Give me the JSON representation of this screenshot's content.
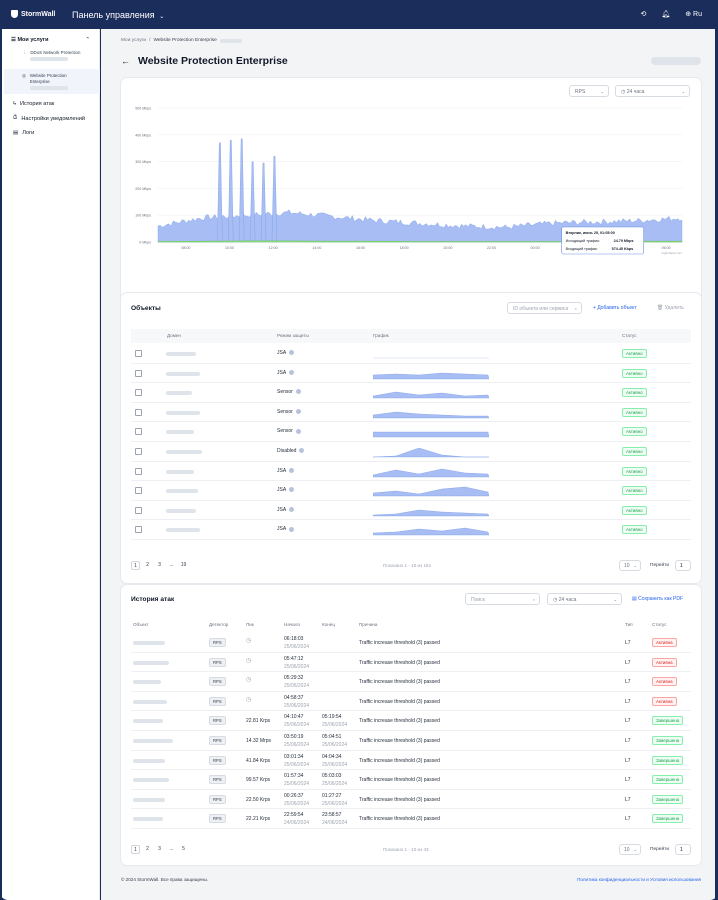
{
  "topbar": {
    "brand": "StormWall",
    "panel_title": "Панель управления",
    "lang": "Ru"
  },
  "sidebar": {
    "my_services": "Мои услуги",
    "services": [
      {
        "label": "DDoS Network Protection"
      },
      {
        "label": "Website Protection Enterprise"
      }
    ],
    "sections": [
      "История атак",
      "Настройки уведомлений",
      "Логи"
    ]
  },
  "breadcrumb": {
    "root": "Мои услуги",
    "sep": "/",
    "current": "Website Protection Enterprise"
  },
  "page": {
    "title": "Website Protection Enterprise"
  },
  "traffic_card": {
    "metric_select": "RPS",
    "period_select": "24 часа",
    "watermark": "highcharts.com"
  },
  "chart_data": {
    "type": "area",
    "x": [
      "06:00",
      "08:00",
      "10:00",
      "12:00",
      "14:00",
      "16:00",
      "18:00",
      "20:00",
      "22:00",
      "00:00",
      "02:00",
      "04:00",
      "06:00"
    ],
    "y_ticks": [
      "0 Mbps",
      "100 Mbps",
      "200 Mbps",
      "300 Mbps",
      "400 Mbps",
      "500 Mbps"
    ],
    "ylim": [
      0,
      500
    ],
    "series": [
      {
        "name": "Исходящий трафик",
        "color": "#a7bdf3",
        "values": [
          60,
          90,
          100,
          110,
          95,
          80,
          70,
          60,
          55,
          70,
          75,
          80,
          90
        ]
      },
      {
        "name": "Входящий трафик",
        "color": "#9be38a",
        "values": [
          2,
          3,
          4,
          4,
          3,
          3,
          2,
          2,
          2,
          2,
          2,
          3,
          3
        ]
      }
    ],
    "spikes": [
      {
        "x": "08:50",
        "y": 370
      },
      {
        "x": "09:20",
        "y": 380
      },
      {
        "x": "09:50",
        "y": 385
      },
      {
        "x": "10:20",
        "y": 300
      },
      {
        "x": "10:50",
        "y": 295
      },
      {
        "x": "11:20",
        "y": 320
      }
    ],
    "tooltip": {
      "title": "Вторник, июнь 25, 01:05:00",
      "line1_label": "Исходящий трафик:",
      "line1_value": "24.79 Mbps",
      "line2_label": "Входящий трафик:",
      "line2_value": "574.45 Kbps"
    },
    "legend": "bottom-center",
    "grid": true
  },
  "objects": {
    "title": "Объекты",
    "search_placeholder": "ID объекта или сервиса",
    "add_label": "Добавить объект",
    "delete_label": "Удалить",
    "columns": [
      "Домен",
      "Режим защиты",
      "График",
      "Статус"
    ],
    "rows": [
      {
        "mode": "JSA",
        "status": "Активно"
      },
      {
        "mode": "JSA",
        "status": "Активно"
      },
      {
        "mode": "Sensor",
        "status": "Активно"
      },
      {
        "mode": "Sensor",
        "status": "Активно"
      },
      {
        "mode": "Sensor",
        "status": "Активно"
      },
      {
        "mode": "Disabled",
        "status": "Активно"
      },
      {
        "mode": "JSA",
        "status": "Активно"
      },
      {
        "mode": "JSA",
        "status": "Активно"
      },
      {
        "mode": "JSA",
        "status": "Активно"
      },
      {
        "mode": "JSA",
        "status": "Активно"
      }
    ],
    "pages": [
      "1",
      "2",
      "3",
      "...",
      "19"
    ],
    "shown": "Показано 1 - 10 из 181",
    "page_size": "10",
    "goto_label": "Перейти",
    "goto_value": "1"
  },
  "attacks": {
    "title": "История атак",
    "search_placeholder": "Поиск",
    "period_select": "24 часа",
    "save_pdf": "Сохранить как PDF",
    "columns": [
      "Объект",
      "Детектор",
      "Пик",
      "Начало",
      "Конец",
      "Причина",
      "Тип",
      "Статус"
    ],
    "rows": [
      {
        "detector": "RPS",
        "peak": "",
        "start_time": "06:18:03",
        "start_date": "25/06/2024",
        "end_time": "",
        "end_date": "",
        "reason": "Traffic increase threshold (3) passed",
        "type": "L7",
        "status": "Активна",
        "active": true
      },
      {
        "detector": "RPS",
        "peak": "",
        "start_time": "05:47:12",
        "start_date": "25/06/2024",
        "end_time": "",
        "end_date": "",
        "reason": "Traffic increase threshold (3) passed",
        "type": "L7",
        "status": "Активна",
        "active": true
      },
      {
        "detector": "RPS",
        "peak": "",
        "start_time": "05:29:32",
        "start_date": "25/06/2024",
        "end_time": "",
        "end_date": "",
        "reason": "Traffic increase threshold (3) passed",
        "type": "L7",
        "status": "Активна",
        "active": true
      },
      {
        "detector": "RPS",
        "peak": "",
        "start_time": "04:58:37",
        "start_date": "25/06/2024",
        "end_time": "",
        "end_date": "",
        "reason": "Traffic increase threshold (3) passed",
        "type": "L7",
        "status": "Активна",
        "active": true
      },
      {
        "detector": "RPS",
        "peak": "22.81 Krps",
        "start_time": "04:10:47",
        "start_date": "25/06/2024",
        "end_time": "05:19:54",
        "end_date": "25/06/2024",
        "reason": "Traffic increase threshold (3) passed",
        "type": "L7",
        "status": "Завершена",
        "active": false
      },
      {
        "detector": "RPS",
        "peak": "14.32 Mrps",
        "start_time": "03:50:19",
        "start_date": "25/06/2024",
        "end_time": "05:04:51",
        "end_date": "25/06/2024",
        "reason": "Traffic increase threshold (3) passed",
        "type": "L7",
        "status": "Завершена",
        "active": false
      },
      {
        "detector": "RPS",
        "peak": "41.84 Krps",
        "start_time": "03:01:34",
        "start_date": "25/06/2024",
        "end_time": "04:04:34",
        "end_date": "25/06/2024",
        "reason": "Traffic increase threshold (3) passed",
        "type": "L7",
        "status": "Завершена",
        "active": false
      },
      {
        "detector": "RPS",
        "peak": "99.57 Krps",
        "start_time": "01:57:34",
        "start_date": "25/06/2024",
        "end_time": "05:03:03",
        "end_date": "25/06/2024",
        "reason": "Traffic increase threshold (3) passed",
        "type": "L7",
        "status": "Завершена",
        "active": false
      },
      {
        "detector": "RPS",
        "peak": "22.50 Krps",
        "start_time": "00:26:37",
        "start_date": "25/06/2024",
        "end_time": "01:27:27",
        "end_date": "25/06/2024",
        "reason": "Traffic increase threshold (3) passed",
        "type": "L7",
        "status": "Завершена",
        "active": false
      },
      {
        "detector": "RPS",
        "peak": "22.21 Krps",
        "start_time": "22:59:54",
        "start_date": "24/06/2024",
        "end_time": "23:58:57",
        "end_date": "24/06/2024",
        "reason": "Traffic increase threshold (3) passed",
        "type": "L7",
        "status": "Завершена",
        "active": false
      }
    ],
    "pages": [
      "1",
      "2",
      "3",
      "...",
      "5"
    ],
    "shown": "Показано 1 - 10 из 43",
    "page_size": "10",
    "goto_label": "Перейти",
    "goto_value": "1"
  },
  "footer": {
    "copyright": "© 2024 StormWall. Все права защищены.",
    "links": "Политика конфиденциальности и Условия использования"
  }
}
